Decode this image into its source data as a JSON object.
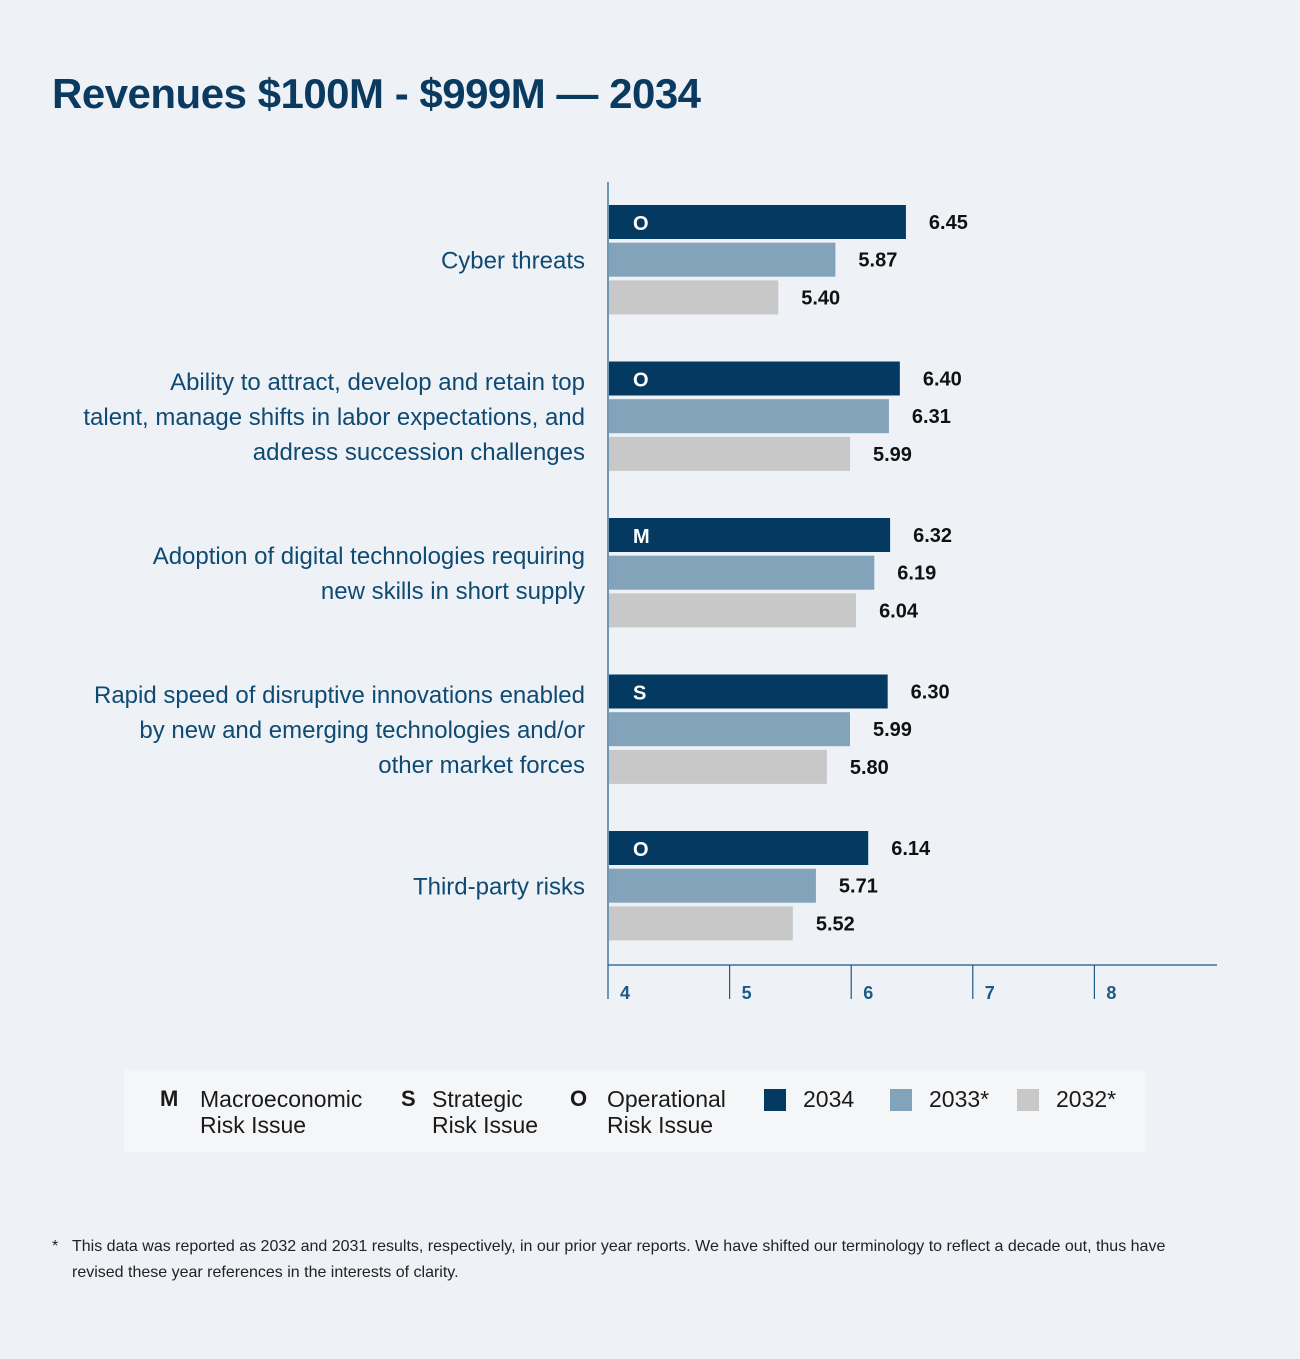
{
  "title": "Revenues $100M - $999M — 2034",
  "chart_data": {
    "type": "bar",
    "orientation": "horizontal",
    "categories": [
      {
        "label": [
          "Cyber threats"
        ],
        "risk_type": "O"
      },
      {
        "label": [
          "Ability to attract, develop and retain top",
          "talent, manage shifts in labor expectations, and",
          "address succession challenges"
        ],
        "risk_type": "O"
      },
      {
        "label": [
          "Adoption of digital technologies requiring",
          "new skills in short supply"
        ],
        "risk_type": "M"
      },
      {
        "label": [
          "Rapid speed of disruptive innovations enabled",
          "by new and emerging technologies and/or",
          "other market forces"
        ],
        "risk_type": "S"
      },
      {
        "label": [
          "Third-party risks"
        ],
        "risk_type": "O"
      }
    ],
    "series": [
      {
        "name": "2034",
        "color": "#043a62",
        "values": [
          6.45,
          6.4,
          6.32,
          6.3,
          6.14
        ],
        "labels": [
          "6.45",
          "6.40",
          "6.32",
          "6.30",
          "6.14"
        ]
      },
      {
        "name": "2033*",
        "color": "#82a3b9",
        "values": [
          5.87,
          6.31,
          6.19,
          5.99,
          5.71
        ],
        "labels": [
          "5.87",
          "6.31",
          "6.19",
          "5.99",
          "5.71"
        ]
      },
      {
        "name": "2032*",
        "color": "#c8c8c8",
        "values": [
          5.4,
          5.99,
          6.04,
          5.8,
          5.52
        ],
        "labels": [
          "5.40",
          "5.99",
          "6.04",
          "5.80",
          "5.52"
        ]
      }
    ],
    "xlim": [
      4,
      9
    ],
    "xticks": [
      "4",
      "5",
      "6",
      "7",
      "8"
    ],
    "legend_placement": "bottom"
  },
  "legend": {
    "risk_types": [
      {
        "letter": "M",
        "line1": "Macroeconomic",
        "line2": "Risk Issue"
      },
      {
        "letter": "S",
        "line1": "Strategic",
        "line2": "Risk Issue"
      },
      {
        "letter": "O",
        "line1": "Operational",
        "line2": "Risk Issue"
      }
    ],
    "years": [
      {
        "label": "2034",
        "color": "#043a62"
      },
      {
        "label": "2033*",
        "color": "#82a3b9"
      },
      {
        "label": "2032*",
        "color": "#c8c8c8"
      }
    ]
  },
  "footnote": {
    "marker": "*",
    "text": "This data was reported as 2032 and 2031 results, respectively, in our prior year reports. We have shifted our terminology to reflect a decade out, thus have revised these year references in the interests of clarity."
  }
}
